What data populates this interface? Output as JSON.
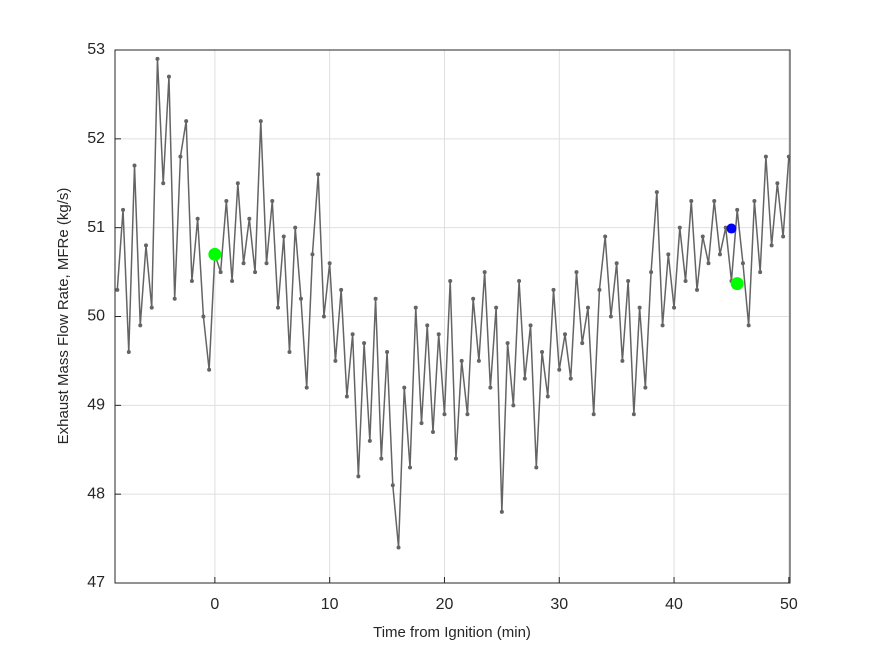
{
  "chart_data": {
    "type": "line",
    "xlabel": "Time from Ignition (min)",
    "ylabel": "Exhaust Mass Flow Rate, MFRe (kg/s)",
    "xlim": [
      -8.7,
      50.1
    ],
    "ylim": [
      47,
      53
    ],
    "xticks": [
      0,
      10,
      20,
      30,
      40,
      50
    ],
    "yticks": [
      47,
      48,
      49,
      50,
      51,
      52,
      53
    ],
    "grid": true,
    "series": [
      {
        "color": "#646464",
        "style": "line",
        "x": [
          -8.5,
          -8.0,
          -7.5,
          -7.0,
          -6.5,
          -6.0,
          -5.5,
          -5.0,
          -4.5,
          -4.0,
          -3.5,
          -3.0,
          -2.5,
          -2.0,
          -1.5,
          -1.0,
          -0.5,
          0.0,
          0.5,
          1.0,
          1.5,
          2.0,
          2.5,
          3.0,
          3.5,
          4.0,
          4.5,
          5.0,
          5.5,
          6.0,
          6.5,
          7.0,
          7.5,
          8.0,
          8.5,
          9.0,
          9.5,
          10.0,
          10.5,
          11.0,
          11.5,
          12.0,
          12.5,
          13.0,
          13.5,
          14.0,
          14.5,
          15.0,
          15.5,
          16.0,
          16.5,
          17.0,
          17.5,
          18.0,
          18.5,
          19.0,
          19.5,
          20.0,
          20.5,
          21.0,
          21.5,
          22.0,
          22.5,
          23.0,
          23.5,
          24.0,
          24.5,
          25.0,
          25.5,
          26.0,
          26.5,
          27.0,
          27.5,
          28.0,
          28.5,
          29.0,
          29.5,
          30.0,
          30.5,
          31.0,
          31.5,
          32.0,
          32.5,
          33.0,
          33.5,
          34.0,
          34.5,
          35.0,
          35.5,
          36.0,
          36.5,
          37.0,
          37.5,
          38.0,
          38.5,
          39.0,
          39.5,
          40.0,
          40.5,
          41.0,
          41.5,
          42.0,
          42.5,
          43.0,
          43.5,
          44.0,
          44.5,
          45.0,
          45.5,
          46.0,
          46.5,
          47.0,
          47.5,
          48.0,
          48.5,
          49.0,
          49.5,
          50.0
        ],
        "values": [
          50.3,
          51.2,
          49.6,
          51.7,
          49.9,
          50.8,
          50.1,
          52.9,
          51.5,
          52.7,
          50.2,
          51.8,
          52.2,
          50.4,
          51.1,
          50.0,
          49.4,
          50.7,
          50.5,
          51.3,
          50.4,
          51.5,
          50.6,
          51.1,
          50.5,
          52.2,
          50.6,
          51.3,
          50.1,
          50.9,
          49.6,
          51.0,
          50.2,
          49.2,
          50.7,
          51.6,
          50.0,
          50.6,
          49.5,
          50.3,
          49.1,
          49.8,
          48.2,
          49.7,
          48.6,
          50.2,
          48.4,
          49.6,
          48.1,
          47.4,
          49.2,
          48.3,
          50.1,
          48.8,
          49.9,
          48.7,
          49.8,
          48.9,
          50.4,
          48.4,
          49.5,
          48.9,
          50.2,
          49.5,
          50.5,
          49.2,
          50.1,
          47.8,
          49.7,
          49.0,
          50.4,
          49.3,
          49.9,
          48.3,
          49.6,
          49.1,
          50.3,
          49.4,
          49.8,
          49.3,
          50.5,
          49.7,
          50.1,
          48.9,
          50.3,
          50.9,
          50.0,
          50.6,
          49.5,
          50.4,
          48.9,
          50.1,
          49.2,
          50.5,
          51.4,
          49.9,
          50.7,
          50.1,
          51.0,
          50.4,
          51.3,
          50.3,
          50.9,
          50.6,
          51.3,
          50.7,
          51.0,
          50.4,
          51.2,
          50.6,
          49.9,
          51.3,
          50.5,
          51.8,
          50.8,
          51.5,
          50.9,
          51.8
        ]
      },
      {
        "color": "#00ff00",
        "style": "point",
        "x": [
          0.0,
          45.5
        ],
        "values": [
          50.7,
          50.37
        ]
      },
      {
        "color": "#0000ff",
        "style": "point",
        "x": [
          45.0
        ],
        "values": [
          50.99
        ]
      }
    ]
  }
}
